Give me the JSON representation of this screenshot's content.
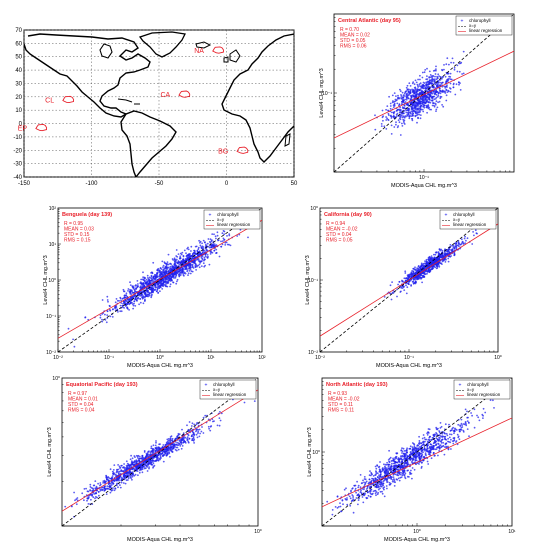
{
  "map": {
    "lon_range": [
      -150,
      50
    ],
    "lat_range": [
      -40,
      70
    ],
    "x_ticks": [
      "-150",
      "-100",
      "-50",
      "0",
      "50"
    ],
    "y_ticks": [
      "70",
      "60",
      "50",
      "40",
      "30",
      "20",
      "10",
      "0",
      "-10",
      "-20",
      "-30",
      "-40"
    ],
    "regions": [
      {
        "label": "NA",
        "lon": -13,
        "lat": 55
      },
      {
        "label": "CA",
        "lon": -38,
        "lat": 22
      },
      {
        "label": "CL",
        "lon": -124,
        "lat": 18
      },
      {
        "label": "EP",
        "lon": -144,
        "lat": -3
      },
      {
        "label": "BG",
        "lon": 5,
        "lat": -20
      }
    ],
    "land_color": "#000000",
    "region_color": "#e8202a"
  },
  "chart_data": [
    {
      "type": "scatter",
      "title": "Central Atlantic (day 95)",
      "xlabel": "MODIS-Aqua CHL mg.m^3",
      "ylabel": "Level4 CHL mg.m^3",
      "scale": "log",
      "xlim": [
        0.01,
        1
      ],
      "ylim": [
        0.01,
        1
      ],
      "x_ticks": [
        "10⁻¹"
      ],
      "y_ticks": [
        "10⁻¹"
      ],
      "stats": [
        "R     = 0.70",
        "MEAN = 0.02",
        "STD   = 0.05",
        "RMS   = 0.06"
      ],
      "legend": [
        "chlorophyll",
        "x=y",
        "linear regression"
      ],
      "legend_position": "top-right",
      "cloud": {
        "center": [
          0.09,
          0.088
        ],
        "spread": [
          0.18,
          0.16
        ],
        "corr": 0.7,
        "n": 900
      },
      "regression": {
        "slope": 0.55,
        "intercept_log10": -0.47
      },
      "colors": {
        "points": "#2222ee",
        "identity": "#000000",
        "regression": "#e8202a",
        "stats": "#e8202a"
      }
    },
    {
      "type": "scatter",
      "title": "Benguela (day 139)",
      "xlabel": "MODIS-Aqua CHL mg.m^3",
      "ylabel": "Level4 CHL mg.m^3",
      "scale": "log",
      "xlim": [
        0.01,
        100
      ],
      "ylim": [
        0.01,
        100
      ],
      "x_ticks": [
        "10⁻²",
        "10⁻¹",
        "10⁰",
        "10¹",
        "10²"
      ],
      "y_ticks": [
        "10⁻²",
        "10⁻¹",
        "10⁰",
        "10¹",
        "10²"
      ],
      "stats": [
        "R     = 0.95",
        "MEAN = 0.03",
        "STD   = 0.15",
        "RMS   = 0.15"
      ],
      "legend": [
        "chlorophyll",
        "x=y",
        "linear regression"
      ],
      "legend_position": "top-right",
      "cloud": {
        "center": [
          1.3,
          1.3
        ],
        "spread": [
          0.55,
          0.5
        ],
        "corr": 0.95,
        "n": 1400
      },
      "regression": {
        "slope": 0.82,
        "intercept_log10": 0.02
      },
      "colors": {
        "points": "#2222ee",
        "identity": "#000000",
        "regression": "#e8202a",
        "stats": "#e8202a"
      }
    },
    {
      "type": "scatter",
      "title": "California (day 90)",
      "xlabel": "MODIS-Aqua CHL mg.m^3",
      "ylabel": "Level4 CHL mg.m^3",
      "scale": "log",
      "xlim": [
        0.01,
        1
      ],
      "ylim": [
        0.01,
        1
      ],
      "x_ticks": [
        "10⁻²",
        "10⁻¹",
        "10⁰"
      ],
      "y_ticks": [
        "10⁻²",
        "10⁻¹",
        "10⁰"
      ],
      "stats": [
        "R     = 0.94",
        "MEAN = -0.02",
        "STD   = 0.04",
        "RMS   = 0.05"
      ],
      "legend": [
        "chlorophyll",
        "x=y",
        "linear regression"
      ],
      "legend_position": "top-right",
      "cloud": {
        "center": [
          0.17,
          0.16
        ],
        "spread": [
          0.17,
          0.15
        ],
        "corr": 0.94,
        "n": 800
      },
      "regression": {
        "slope": 0.78,
        "intercept_log10": -0.22
      },
      "colors": {
        "points": "#2222ee",
        "identity": "#000000",
        "regression": "#e8202a",
        "stats": "#e8202a"
      }
    },
    {
      "type": "scatter",
      "title": "Equatorial Pacific (day 193)",
      "xlabel": "MODIS-Aqua CHL mg.m^3",
      "ylabel": "Level4 CHL mg.m^3",
      "scale": "log",
      "xlim": [
        0.1,
        1
      ],
      "ylim": [
        0.1,
        1
      ],
      "x_ticks": [
        "10⁰"
      ],
      "y_ticks": [
        "10⁰"
      ],
      "stats": [
        "R     = 0.97",
        "MEAN = 0.01",
        "STD   = 0.04",
        "RMS   = 0.04"
      ],
      "legend": [
        "chlorophyll",
        "x=y",
        "linear regression"
      ],
      "legend_position": "top-right",
      "cloud": {
        "center": [
          0.26,
          0.27
        ],
        "spread": [
          0.16,
          0.13
        ],
        "corr": 0.97,
        "n": 1100
      },
      "regression": {
        "slope": 0.82,
        "intercept_log10": -0.08
      },
      "colors": {
        "points": "#2222ee",
        "identity": "#000000",
        "regression": "#e8202a",
        "stats": "#e8202a"
      }
    },
    {
      "type": "scatter",
      "title": "North Atlantic (day 193)",
      "xlabel": "MODIS-Aqua CHL mg.m^3",
      "ylabel": "Level4 CHL mg.m^3",
      "scale": "log",
      "xlim": [
        0.1,
        10
      ],
      "ylim": [
        0.1,
        10
      ],
      "x_ticks": [
        "10⁰",
        "10¹"
      ],
      "y_ticks": [
        "10⁰"
      ],
      "stats": [
        "R     = 0.93",
        "MEAN = -0.02",
        "STD   = 0.11",
        "RMS   = 0.11"
      ],
      "legend": [
        "chlorophyll",
        "x=y",
        "linear regression"
      ],
      "legend_position": "top-right",
      "cloud": {
        "center": [
          0.75,
          0.72
        ],
        "spread": [
          0.3,
          0.26
        ],
        "corr": 0.93,
        "n": 1100
      },
      "regression": {
        "slope": 0.6,
        "intercept_log10": -0.14
      },
      "colors": {
        "points": "#2222ee",
        "identity": "#000000",
        "regression": "#e8202a",
        "stats": "#e8202a"
      }
    }
  ]
}
